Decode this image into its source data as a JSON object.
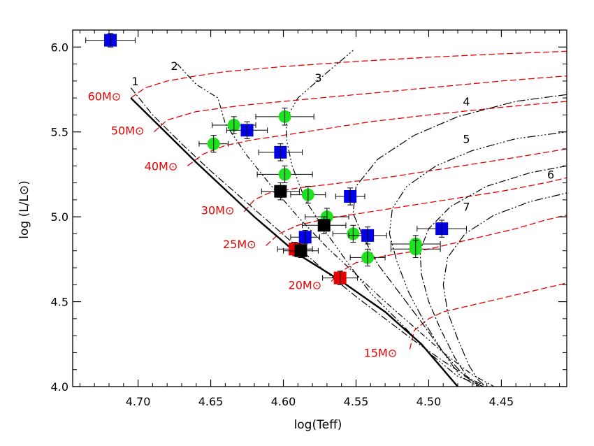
{
  "chart_data": {
    "type": "scatter",
    "title": "",
    "xlabel": "log(Teff)",
    "ylabel": "log (L/L⊙)",
    "xlim": [
      4.745,
      4.405
    ],
    "ylim": [
      4.0,
      6.1
    ],
    "x_ticks": [
      "4.70",
      "4.65",
      "4.60",
      "4.55",
      "4.50",
      "4.45"
    ],
    "y_ticks": [
      "4.0",
      "4.5",
      "5.0",
      "5.5",
      "6.0"
    ],
    "x_tick_values": [
      4.7,
      4.65,
      4.6,
      4.55,
      4.5,
      4.45
    ],
    "y_tick_values": [
      4.0,
      4.5,
      5.0,
      5.5,
      6.0
    ],
    "grid": false,
    "colors": {
      "blue": "#0000e6",
      "green": "#1ee21e",
      "black": "#000000",
      "red": "#e60000"
    },
    "zams": {
      "x": [
        4.705,
        4.66,
        4.62,
        4.59,
        4.56,
        4.53,
        4.505,
        4.48
      ],
      "y": [
        5.7,
        5.32,
        5.0,
        4.78,
        4.62,
        4.44,
        4.25,
        4.0
      ]
    },
    "mass_labels": [
      {
        "text": "60M⊙",
        "x": 4.705,
        "y": 5.71
      },
      {
        "text": "50M⊙",
        "x": 4.689,
        "y": 5.51
      },
      {
        "text": "40M⊙",
        "x": 4.666,
        "y": 5.3
      },
      {
        "text": "30M⊙",
        "x": 4.627,
        "y": 5.04
      },
      {
        "text": "25M⊙",
        "x": 4.612,
        "y": 4.84
      },
      {
        "text": "20M⊙",
        "x": 4.567,
        "y": 4.6
      },
      {
        "text": "15M⊙",
        "x": 4.515,
        "y": 4.2
      }
    ],
    "isochrone_labels": [
      {
        "text": "1",
        "x": 4.702,
        "y": 5.8
      },
      {
        "text": "2",
        "x": 4.675,
        "y": 5.89
      },
      {
        "text": "3",
        "x": 4.576,
        "y": 5.82
      },
      {
        "text": "4",
        "x": 4.474,
        "y": 5.68
      },
      {
        "text": "5",
        "x": 4.474,
        "y": 5.46
      },
      {
        "text": "6",
        "x": 4.416,
        "y": 5.25
      },
      {
        "text": "7",
        "x": 4.474,
        "y": 5.06
      }
    ],
    "tracks": [
      {
        "mass": "60",
        "x": [
          4.705,
          4.695,
          4.68,
          4.66,
          4.64,
          4.6,
          4.55,
          4.5,
          4.45,
          4.405
        ],
        "y": [
          5.7,
          5.76,
          5.8,
          5.83,
          5.855,
          5.885,
          5.915,
          5.94,
          5.96,
          5.975
        ]
      },
      {
        "mass": "50",
        "x": [
          4.689,
          4.68,
          4.66,
          4.63,
          4.6,
          4.55,
          4.5,
          4.45,
          4.405
        ],
        "y": [
          5.5,
          5.57,
          5.62,
          5.655,
          5.68,
          5.72,
          5.76,
          5.8,
          5.83
        ]
      },
      {
        "mass": "40",
        "x": [
          4.666,
          4.655,
          4.64,
          4.62,
          4.6,
          4.57,
          4.54,
          4.5,
          4.45,
          4.405
        ],
        "y": [
          5.3,
          5.37,
          5.42,
          5.455,
          5.48,
          5.52,
          5.56,
          5.6,
          5.645,
          5.68
        ]
      },
      {
        "mass": "30",
        "x": [
          4.627,
          4.62,
          4.61,
          4.59,
          4.56,
          4.53,
          4.5,
          4.47,
          4.44,
          4.405
        ],
        "y": [
          5.03,
          5.1,
          5.14,
          5.17,
          5.2,
          5.23,
          5.27,
          5.31,
          5.35,
          5.4
        ]
      },
      {
        "mass": "25",
        "x": [
          4.612,
          4.603,
          4.59,
          4.57,
          4.54,
          4.51,
          4.48,
          4.45,
          4.42,
          4.405
        ],
        "y": [
          4.83,
          4.9,
          4.95,
          4.99,
          5.03,
          5.07,
          5.11,
          5.15,
          5.2,
          5.23
        ]
      },
      {
        "mass": "20",
        "x": [
          4.567,
          4.56,
          4.55,
          4.53,
          4.5,
          4.48,
          4.46,
          4.44,
          4.42,
          4.405
        ],
        "y": [
          4.62,
          4.68,
          4.73,
          4.77,
          4.81,
          4.85,
          4.89,
          4.93,
          4.98,
          5.01
        ]
      },
      {
        "mass": "15",
        "x": [
          4.513,
          4.51,
          4.5,
          4.49,
          4.47,
          4.45,
          4.43,
          4.405
        ],
        "y": [
          4.22,
          4.33,
          4.4,
          4.44,
          4.48,
          4.52,
          4.56,
          4.61
        ]
      }
    ],
    "isochrones": [
      {
        "label": "1",
        "dash": "10 3 2 3",
        "x": [
          4.705,
          4.69,
          4.67,
          4.65,
          4.63,
          4.61,
          4.59,
          4.57,
          4.55,
          4.53,
          4.51,
          4.49,
          4.47,
          4.46
        ],
        "y": [
          5.76,
          5.6,
          5.43,
          5.27,
          5.12,
          4.97,
          4.82,
          4.67,
          4.53,
          4.4,
          4.27,
          4.15,
          4.04,
          4.0
        ]
      },
      {
        "label": "2",
        "dash": "8 3 2 3 2 3",
        "x": [
          4.673,
          4.66,
          4.645,
          4.64,
          4.625,
          4.61,
          4.59,
          4.57,
          4.55,
          4.53,
          4.51,
          4.49,
          4.47,
          4.455
        ],
        "y": [
          5.9,
          5.78,
          5.7,
          5.55,
          5.36,
          5.2,
          5.0,
          4.82,
          4.66,
          4.5,
          4.35,
          4.2,
          4.07,
          4.0
        ]
      },
      {
        "label": "3",
        "dash": "2 3 2 3 2 3 10 3",
        "x": [
          4.552,
          4.57,
          4.59,
          4.598,
          4.598,
          4.594,
          4.585,
          4.57,
          4.555,
          4.54,
          4.52,
          4.5,
          4.48,
          4.462
        ],
        "y": [
          5.98,
          5.85,
          5.7,
          5.58,
          5.46,
          5.3,
          5.1,
          4.9,
          4.72,
          4.55,
          4.38,
          4.2,
          4.06,
          4.0
        ]
      },
      {
        "label": "4",
        "dash": "12 3 2 3",
        "x": [
          4.405,
          4.44,
          4.48,
          4.51,
          4.535,
          4.55,
          4.552,
          4.545,
          4.535,
          4.52,
          4.505,
          4.49,
          4.475,
          4.463
        ],
        "y": [
          5.72,
          5.68,
          5.59,
          5.48,
          5.34,
          5.18,
          5.02,
          4.88,
          4.72,
          4.55,
          4.38,
          4.2,
          4.06,
          4.0
        ]
      },
      {
        "label": "5",
        "dash": "2 3 2 3 2 3 12 3",
        "x": [
          4.405,
          4.44,
          4.47,
          4.495,
          4.515,
          4.525,
          4.527,
          4.522,
          4.514,
          4.503,
          4.49,
          4.478,
          4.466
        ],
        "y": [
          5.5,
          5.46,
          5.39,
          5.3,
          5.18,
          5.05,
          4.9,
          4.74,
          4.56,
          4.38,
          4.2,
          4.06,
          4.0
        ]
      },
      {
        "label": "6",
        "dash": "10 3 2 3",
        "x": [
          4.405,
          4.43,
          4.46,
          4.485,
          4.5,
          4.506,
          4.505,
          4.5,
          4.492,
          4.482,
          4.473,
          4.465
        ],
        "y": [
          5.3,
          5.26,
          5.18,
          5.06,
          4.93,
          4.8,
          4.66,
          4.5,
          4.34,
          4.17,
          4.05,
          4.0
        ]
      },
      {
        "label": "7",
        "dash": "2 3 2 3 12 3",
        "x": [
          4.405,
          4.43,
          4.455,
          4.475,
          4.487,
          4.49,
          4.487,
          4.48,
          4.472,
          4.466,
          4.461
        ],
        "y": [
          5.14,
          5.09,
          5.01,
          4.9,
          4.76,
          4.6,
          4.44,
          4.28,
          4.12,
          4.04,
          4.0
        ]
      }
    ],
    "stars": [
      {
        "x": 4.719,
        "y": 6.04,
        "xerr": 0.017,
        "yerr": 0.04,
        "color": "blue"
      },
      {
        "x": 4.634,
        "y": 5.54,
        "xerr": 0.015,
        "yerr": 0.05,
        "color": "green"
      },
      {
        "x": 4.625,
        "y": 5.51,
        "xerr": 0.014,
        "yerr": 0.05,
        "color": "blue"
      },
      {
        "x": 4.599,
        "y": 5.59,
        "xerr": 0.02,
        "yerr": 0.05,
        "color": "green"
      },
      {
        "x": 4.648,
        "y": 5.43,
        "xerr": 0.01,
        "yerr": 0.05,
        "color": "green"
      },
      {
        "x": 4.602,
        "y": 5.38,
        "xerr": 0.015,
        "yerr": 0.05,
        "color": "blue"
      },
      {
        "x": 4.599,
        "y": 5.25,
        "xerr": 0.019,
        "yerr": 0.05,
        "color": "green"
      },
      {
        "x": 4.602,
        "y": 5.15,
        "xerr": 0.013,
        "yerr": 0.05,
        "color": "black"
      },
      {
        "x": 4.583,
        "y": 5.13,
        "xerr": 0.012,
        "yerr": 0.05,
        "color": "green"
      },
      {
        "x": 4.554,
        "y": 5.12,
        "xerr": 0.01,
        "yerr": 0.05,
        "color": "blue"
      },
      {
        "x": 4.57,
        "y": 5.0,
        "xerr": 0.015,
        "yerr": 0.05,
        "color": "green"
      },
      {
        "x": 4.572,
        "y": 4.95,
        "xerr": 0.015,
        "yerr": 0.05,
        "color": "black"
      },
      {
        "x": 4.552,
        "y": 4.9,
        "xerr": 0.014,
        "yerr": 0.05,
        "color": "green"
      },
      {
        "x": 4.585,
        "y": 4.88,
        "xerr": 0.01,
        "yerr": 0.04,
        "color": "blue"
      },
      {
        "x": 4.542,
        "y": 4.89,
        "xerr": 0.013,
        "yerr": 0.05,
        "color": "blue"
      },
      {
        "x": 4.491,
        "y": 4.93,
        "xerr": 0.017,
        "yerr": 0.05,
        "color": "blue"
      },
      {
        "x": 4.509,
        "y": 4.84,
        "xerr": 0.017,
        "yerr": 0.05,
        "color": "green"
      },
      {
        "x": 4.509,
        "y": 4.81,
        "xerr": 0.017,
        "yerr": 0.05,
        "color": "green"
      },
      {
        "x": 4.542,
        "y": 4.76,
        "xerr": 0.012,
        "yerr": 0.05,
        "color": "green"
      },
      {
        "x": 4.592,
        "y": 4.81,
        "xerr": 0.012,
        "yerr": 0.04,
        "color": "red"
      },
      {
        "x": 4.588,
        "y": 4.8,
        "xerr": 0.012,
        "yerr": 0.04,
        "color": "black"
      },
      {
        "x": 4.561,
        "y": 4.64,
        "xerr": 0.012,
        "yerr": 0.04,
        "color": "red"
      }
    ]
  }
}
